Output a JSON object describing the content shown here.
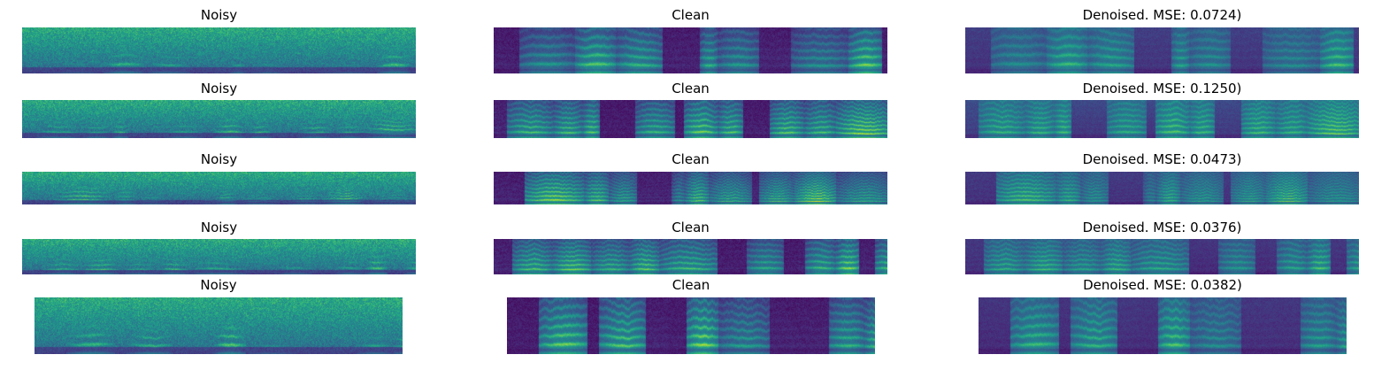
{
  "chart_data": {
    "type": "heatmap",
    "colormap": "viridis",
    "axes_visible": false,
    "rows": [
      {
        "panels": [
          {
            "kind": "noisy",
            "title": "Noisy"
          },
          {
            "kind": "clean",
            "title": "Clean"
          },
          {
            "kind": "denoised",
            "title": "Denoised. MSE: 0.0724)",
            "mse": 0.0724
          }
        ]
      },
      {
        "panels": [
          {
            "kind": "noisy",
            "title": "Noisy"
          },
          {
            "kind": "clean",
            "title": "Clean"
          },
          {
            "kind": "denoised",
            "title": "Denoised. MSE: 0.1250)",
            "mse": 0.125
          }
        ]
      },
      {
        "panels": [
          {
            "kind": "noisy",
            "title": "Noisy"
          },
          {
            "kind": "clean",
            "title": "Clean"
          },
          {
            "kind": "denoised",
            "title": "Denoised. MSE: 0.0473)",
            "mse": 0.0473
          }
        ]
      },
      {
        "panels": [
          {
            "kind": "noisy",
            "title": "Noisy"
          },
          {
            "kind": "clean",
            "title": "Clean"
          },
          {
            "kind": "denoised",
            "title": "Denoised. MSE: 0.0376)",
            "mse": 0.0376
          }
        ]
      },
      {
        "panels": [
          {
            "kind": "noisy",
            "title": "Noisy"
          },
          {
            "kind": "clean",
            "title": "Clean"
          },
          {
            "kind": "denoised",
            "title": "Denoised. MSE: 0.0382)",
            "mse": 0.0382
          }
        ]
      }
    ]
  }
}
